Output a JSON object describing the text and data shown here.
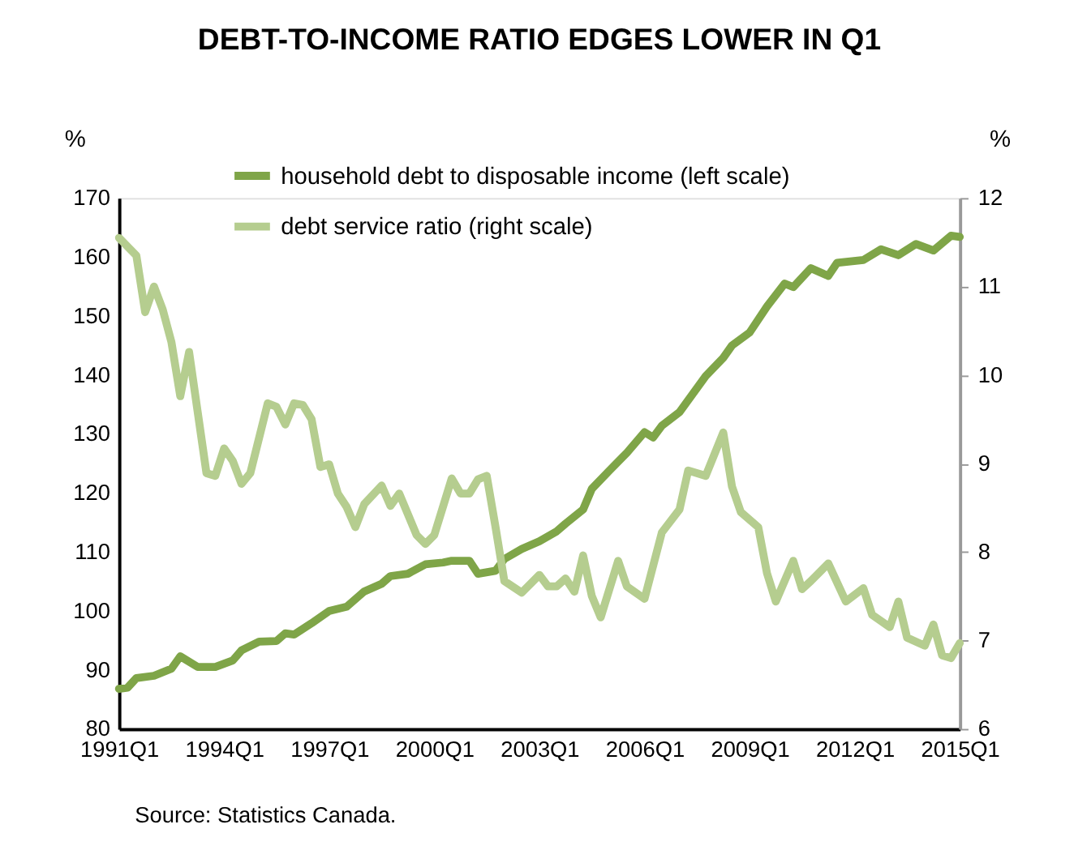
{
  "chart_data": {
    "type": "line",
    "title": "DEBT-TO-INCOME RATIO EDGES LOWER IN Q1",
    "ylabel": "%",
    "y2label": "%",
    "xlim": [
      "1991-01",
      "2015-01"
    ],
    "xticks": [
      {
        "value": "1991-01",
        "label": "1991Q1"
      },
      {
        "value": "1994-01",
        "label": "1994Q1"
      },
      {
        "value": "1997-01",
        "label": "1997Q1"
      },
      {
        "value": "2000-01",
        "label": "2000Q1"
      },
      {
        "value": "2003-01",
        "label": "2003Q1"
      },
      {
        "value": "2006-01",
        "label": "2006Q1"
      },
      {
        "value": "2009-01",
        "label": "2009Q1"
      },
      {
        "value": "2012-01",
        "label": "2012Q1"
      },
      {
        "value": "2015-01",
        "label": "2015Q1"
      }
    ],
    "ylim": [
      80,
      170
    ],
    "yticks": [
      80,
      90,
      100,
      110,
      120,
      130,
      140,
      150,
      160,
      170
    ],
    "y2lim": [
      6,
      12
    ],
    "y2ticks": [
      6,
      7,
      8,
      9,
      10,
      11,
      12
    ],
    "grid": false,
    "legend": "top",
    "line_style": "solid",
    "marker": "none",
    "annotations": [
      "Source: Statistics Canada."
    ],
    "series": [
      {
        "name": "household debt to disposable income (left scale)",
        "color": "#7fa548",
        "x": [
          "1991-01",
          "1991-04",
          "1991-07",
          "1992-01",
          "1992-07",
          "1992-10",
          "1993-04",
          "1993-10",
          "1994-04",
          "1994-07",
          "1995-01",
          "1995-07",
          "1995-10",
          "1996-01",
          "1996-07",
          "1997-01",
          "1997-07",
          "1998-01",
          "1998-07",
          "1998-10",
          "1999-04",
          "1999-10",
          "2000-04",
          "2000-07",
          "2001-01",
          "2001-04",
          "2001-10",
          "2002-01",
          "2002-07",
          "2003-01",
          "2003-07",
          "2003-10",
          "2004-04",
          "2004-07",
          "2005-01",
          "2005-07",
          "2006-01",
          "2006-04",
          "2006-07",
          "2007-01",
          "2007-10",
          "2008-04",
          "2008-07",
          "2009-01",
          "2009-07",
          "2010-01",
          "2010-04",
          "2010-10",
          "2011-04",
          "2011-07",
          "2012-04",
          "2012-10",
          "2013-04",
          "2013-10",
          "2014-04",
          "2014-10",
          "2015-01"
        ],
        "values": [
          86.8,
          87,
          88.6,
          89,
          90.2,
          92.3,
          90.5,
          90.5,
          91.6,
          93.3,
          94.8,
          94.9,
          96.2,
          96,
          97.9,
          100,
          100.7,
          103.3,
          104.6,
          105.9,
          106.3,
          107.9,
          108.2,
          108.5,
          108.5,
          106.3,
          106.8,
          108.8,
          110.5,
          111.8,
          113.5,
          114.8,
          117.2,
          120.7,
          123.8,
          126.8,
          130.3,
          129.4,
          131.4,
          133.7,
          139.8,
          142.9,
          145,
          147.2,
          151.6,
          155.5,
          154.9,
          158.1,
          156.8,
          159,
          159.5,
          161.3,
          160.3,
          162.2,
          161.1,
          163.6,
          163.4
        ]
      },
      {
        "name": "debt service ratio (right scale)",
        "color": "#b5cd8f",
        "axis": "y2",
        "x": [
          "1991-01",
          "1991-07",
          "1991-10",
          "1992-01",
          "1992-04",
          "1992-07",
          "1992-10",
          "1993-01",
          "1993-07",
          "1993-10",
          "1994-01",
          "1994-04",
          "1994-07",
          "1994-10",
          "1995-04",
          "1995-07",
          "1995-10",
          "1996-01",
          "1996-04",
          "1996-07",
          "1996-10",
          "1997-01",
          "1997-04",
          "1997-07",
          "1997-10",
          "1998-01",
          "1998-07",
          "1998-10",
          "1999-01",
          "1999-07",
          "1999-10",
          "2000-01",
          "2000-07",
          "2000-10",
          "2001-01",
          "2001-04",
          "2001-07",
          "2001-10",
          "2002-01",
          "2002-07",
          "2003-01",
          "2003-04",
          "2003-07",
          "2003-10",
          "2004-01",
          "2004-04",
          "2004-07",
          "2004-10",
          "2005-04",
          "2005-07",
          "2006-01",
          "2006-07",
          "2007-01",
          "2007-04",
          "2007-10",
          "2008-04",
          "2008-07",
          "2008-10",
          "2009-04",
          "2009-07",
          "2009-10",
          "2010-04",
          "2010-07",
          "2010-10",
          "2011-04",
          "2011-10",
          "2012-04",
          "2012-07",
          "2013-01",
          "2013-04",
          "2013-07",
          "2014-01",
          "2014-04",
          "2014-07",
          "2014-10",
          "2015-01"
        ],
        "values": [
          11.55,
          11.35,
          10.71,
          11,
          10.74,
          10.37,
          9.76,
          10.26,
          8.89,
          8.86,
          9.17,
          9.03,
          8.77,
          8.89,
          9.68,
          9.64,
          9.44,
          9.68,
          9.66,
          9.5,
          8.96,
          8.99,
          8.66,
          8.51,
          8.28,
          8.54,
          8.75,
          8.52,
          8.66,
          8.19,
          8.09,
          8.19,
          8.83,
          8.66,
          8.66,
          8.82,
          8.86,
          8.28,
          7.67,
          7.54,
          7.74,
          7.61,
          7.61,
          7.7,
          7.55,
          7.96,
          7.5,
          7.26,
          7.9,
          7.61,
          7.47,
          8.22,
          8.48,
          8.92,
          8.86,
          9.35,
          8.74,
          8.45,
          8.28,
          7.76,
          7.44,
          7.9,
          7.58,
          7.67,
          7.87,
          7.44,
          7.59,
          7.29,
          7.15,
          7.44,
          7.03,
          6.94,
          7.18,
          6.83,
          6.8,
          6.97
        ]
      }
    ]
  }
}
